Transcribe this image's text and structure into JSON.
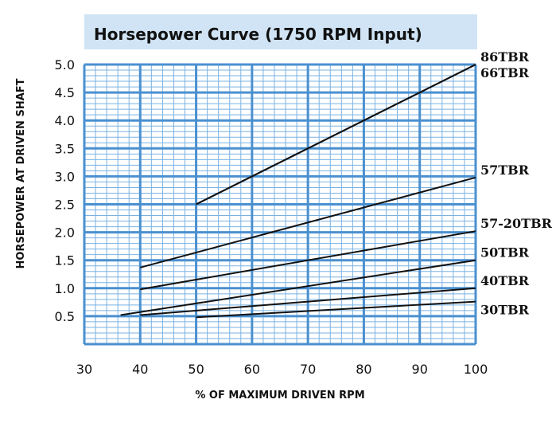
{
  "chart_data": {
    "type": "line",
    "title": "Horsepower Curve (1750 RPM Input)",
    "xlabel": "% OF MAXIMUM DRIVEN RPM",
    "ylabel": "HORSEPOWER AT DRIVEN SHAFT",
    "xlim": [
      30,
      100
    ],
    "ylim": [
      0,
      5.0
    ],
    "x_ticks": [
      "30",
      "40",
      "50",
      "60",
      "70",
      "80",
      "90",
      "100"
    ],
    "y_ticks": [
      "0.5",
      "1.0",
      "1.5",
      "2.0",
      "2.5",
      "3.0",
      "3.5",
      "4.0",
      "4.5",
      "5.0"
    ],
    "grid": true,
    "series": [
      {
        "name": "86TBR",
        "x": [
          50,
          100
        ],
        "y": [
          2.5,
          5.0
        ]
      },
      {
        "name": "66TBR",
        "x": [
          50,
          100
        ],
        "y": [
          2.5,
          5.0
        ]
      },
      {
        "name": "57TBR",
        "x": [
          40,
          100
        ],
        "y": [
          1.37,
          2.98
        ]
      },
      {
        "name": "57-20TBR",
        "x": [
          40,
          100
        ],
        "y": [
          0.98,
          2.02
        ]
      },
      {
        "name": "50TBR",
        "x": [
          36.5,
          100
        ],
        "y": [
          0.52,
          1.5
        ]
      },
      {
        "name": "40TBR",
        "x": [
          40,
          100
        ],
        "y": [
          0.52,
          1.0
        ]
      },
      {
        "name": "30TBR",
        "x": [
          50,
          100
        ],
        "y": [
          0.48,
          0.76
        ]
      }
    ]
  },
  "colors": {
    "title_band": "#d0e4f5",
    "grid_major": "#4a90d0",
    "grid_minor": "#7ab2e2",
    "line": "#111111"
  }
}
